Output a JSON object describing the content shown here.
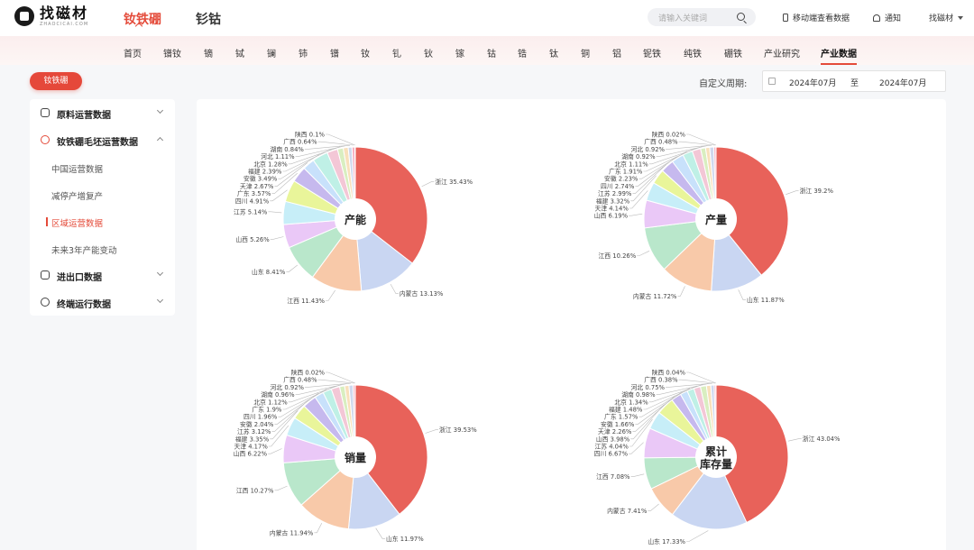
{
  "header": {
    "logo_text": "找磁材",
    "logo_sub": "ZHAOCICAI.COM",
    "tabs": [
      {
        "label": "钕铁硼",
        "active": true
      },
      {
        "label": "钐钴",
        "active": false
      }
    ],
    "search_placeholder": "请输入关键词",
    "mobile_link": "移动端查看数据",
    "notify": "通知",
    "user": "找磁材",
    "accent_color": "#e44b3a"
  },
  "subnav": [
    "首页",
    "镨钕",
    "镝",
    "铽",
    "镧",
    "铈",
    "镨",
    "钕",
    "钆",
    "钬",
    "镓",
    "钴",
    "锆",
    "钛",
    "铜",
    "铝",
    "铌铁",
    "纯铁",
    "硼铁",
    "产业研究",
    "产业数据"
  ],
  "subnav_active": "产业数据",
  "category_pill": "钕铁硼",
  "sidebar": {
    "items": [
      {
        "label": "原料运营数据",
        "icon": "chart-icon",
        "expanded": false
      },
      {
        "label": "钕铁硼毛坯运营数据",
        "icon": "target-icon",
        "expanded": true,
        "children": [
          "中国运营数据",
          "减停产增复产",
          "区域运营数据",
          "未来3年产能变动"
        ],
        "active_child": "区域运营数据"
      },
      {
        "label": "进出口数据",
        "icon": "ship-icon",
        "expanded": false
      },
      {
        "label": "终端运行数据",
        "icon": "gauge-icon",
        "expanded": false
      }
    ]
  },
  "period": {
    "label": "自定义周期:",
    "start": "2024年07月",
    "sep": "至",
    "end": "2024年07月"
  },
  "chart_data": [
    {
      "type": "pie",
      "title": "产能",
      "labels": [
        "浙江",
        "内蒙古",
        "江西",
        "山东",
        "山西",
        "江苏",
        "四川",
        "广东",
        "天津",
        "安徽",
        "福建",
        "北京",
        "河北",
        "湖南",
        "广西",
        "陕西"
      ],
      "values": [
        35.43,
        13.13,
        11.43,
        8.41,
        5.26,
        5.14,
        4.91,
        3.57,
        2.67,
        3.49,
        2.39,
        1.28,
        1.11,
        0.84,
        0.64,
        0.1
      ]
    },
    {
      "type": "pie",
      "title": "产量",
      "labels": [
        "浙江",
        "山东",
        "内蒙古",
        "江西",
        "山西",
        "天津",
        "福建",
        "江苏",
        "四川",
        "安徽",
        "广东",
        "北京",
        "湖南",
        "河北",
        "广西",
        "陕西"
      ],
      "values": [
        39.2,
        11.87,
        11.72,
        10.26,
        6.19,
        4.14,
        3.32,
        2.99,
        2.74,
        2.23,
        1.91,
        1.11,
        0.92,
        0.92,
        0.48,
        0.02
      ]
    },
    {
      "type": "pie",
      "title": "销量",
      "labels": [
        "浙江",
        "山东",
        "内蒙古",
        "江西",
        "山西",
        "天津",
        "福建",
        "江苏",
        "安徽",
        "四川",
        "广东",
        "北京",
        "湖南",
        "河北",
        "广西",
        "陕西"
      ],
      "values": [
        39.53,
        11.97,
        11.94,
        10.27,
        6.22,
        4.17,
        3.35,
        3.12,
        2.04,
        1.96,
        1.9,
        1.12,
        0.96,
        0.92,
        0.48,
        0.02
      ]
    },
    {
      "type": "pie",
      "title": "累计库存量",
      "title_lines": [
        "累计",
        "库存量"
      ],
      "labels": [
        "浙江",
        "山东",
        "内蒙古",
        "江西",
        "四川",
        "江苏",
        "山西",
        "天津",
        "安徽",
        "广东",
        "福建",
        "北京",
        "湖南",
        "河北",
        "广西",
        "陕西"
      ],
      "values": [
        43.04,
        17.33,
        7.41,
        7.08,
        6.67,
        4.04,
        3.98,
        2.26,
        1.66,
        1.57,
        1.48,
        1.34,
        0.98,
        0.75,
        0.38,
        0.04
      ]
    }
  ]
}
